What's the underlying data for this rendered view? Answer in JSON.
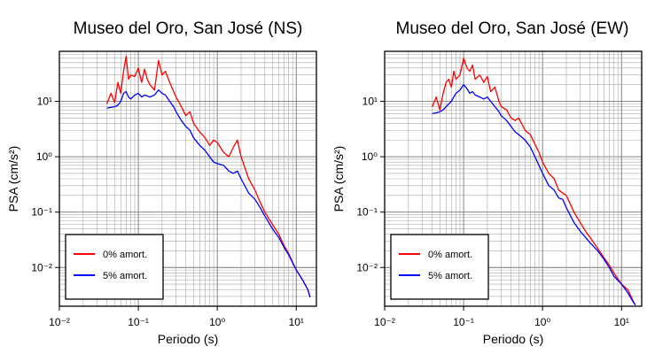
{
  "chart_data": [
    {
      "type": "line",
      "title": "Museo del Oro, San José (NS)",
      "xlabel": "Periodo (s)",
      "ylabel": "PSA (cm/s²)",
      "xscale": "log",
      "yscale": "log",
      "xlim": [
        0.01,
        18
      ],
      "ylim": [
        0.002,
        80
      ],
      "xtick_labels": [
        "10⁻²",
        "10⁻¹",
        "10⁰",
        "10¹"
      ],
      "ytick_labels": [
        "10⁻²",
        "10⁻¹",
        "10⁰",
        "10¹"
      ],
      "grid": true,
      "legend_position": "bottom-left",
      "series": [
        {
          "name": "0% amort.",
          "color": "#ff0000",
          "x": [
            0.04,
            0.045,
            0.05,
            0.055,
            0.06,
            0.065,
            0.07,
            0.075,
            0.08,
            0.09,
            0.1,
            0.11,
            0.12,
            0.13,
            0.14,
            0.16,
            0.18,
            0.2,
            0.22,
            0.25,
            0.28,
            0.3,
            0.35,
            0.4,
            0.45,
            0.5,
            0.6,
            0.7,
            0.8,
            0.9,
            1.0,
            1.2,
            1.4,
            1.6,
            1.8,
            2.0,
            2.5,
            3.0,
            3.5,
            4.0,
            5.0,
            6.0,
            7.0,
            8.0,
            10.0,
            12.0,
            14.0,
            15.0
          ],
          "y": [
            9.0,
            14.0,
            9.5,
            22.0,
            14.0,
            35.0,
            65.0,
            25.0,
            30.0,
            28.0,
            40.0,
            22.0,
            38.0,
            25.0,
            20.0,
            16.0,
            55.0,
            30.0,
            35.0,
            22.0,
            15.0,
            12.0,
            8.0,
            5.5,
            6.5,
            4.0,
            2.8,
            2.2,
            1.6,
            2.0,
            1.8,
            1.2,
            1.0,
            1.5,
            2.0,
            1.0,
            0.4,
            0.25,
            0.15,
            0.1,
            0.06,
            0.04,
            0.025,
            0.018,
            0.009,
            0.006,
            0.004,
            0.0029
          ]
        },
        {
          "name": "5% amort.",
          "color": "#0000ff",
          "x": [
            0.04,
            0.045,
            0.05,
            0.055,
            0.06,
            0.065,
            0.07,
            0.075,
            0.08,
            0.09,
            0.1,
            0.11,
            0.12,
            0.13,
            0.14,
            0.16,
            0.18,
            0.2,
            0.22,
            0.25,
            0.28,
            0.3,
            0.35,
            0.4,
            0.45,
            0.5,
            0.6,
            0.7,
            0.8,
            0.9,
            1.0,
            1.2,
            1.4,
            1.6,
            1.8,
            2.0,
            2.5,
            3.0,
            3.5,
            4.0,
            5.0,
            6.0,
            7.0,
            8.0,
            10.0,
            12.0,
            14.0,
            15.0
          ],
          "y": [
            7.5,
            7.8,
            8.0,
            8.5,
            10.0,
            14.0,
            15.0,
            12.0,
            11.0,
            13.0,
            14.0,
            12.0,
            13.0,
            12.5,
            12.0,
            13.0,
            16.0,
            14.0,
            13.0,
            10.0,
            8.0,
            6.5,
            4.5,
            3.5,
            3.0,
            2.2,
            1.6,
            1.3,
            1.0,
            0.8,
            0.75,
            0.7,
            0.55,
            0.5,
            0.55,
            0.4,
            0.22,
            0.17,
            0.12,
            0.085,
            0.05,
            0.035,
            0.023,
            0.017,
            0.009,
            0.006,
            0.004,
            0.0029
          ]
        }
      ]
    },
    {
      "type": "line",
      "title": "Museo del Oro, San José (EW)",
      "xlabel": "Periodo (s)",
      "ylabel": "PSA (cm/s²)",
      "xscale": "log",
      "yscale": "log",
      "xlim": [
        0.01,
        18
      ],
      "ylim": [
        0.002,
        80
      ],
      "xtick_labels": [
        "10⁻²",
        "10⁻¹",
        "10⁰",
        "10¹"
      ],
      "ytick_labels": [
        "10⁻²",
        "10⁻¹",
        "10⁰",
        "10¹"
      ],
      "grid": true,
      "legend_position": "bottom-left",
      "series": [
        {
          "name": "0% amort.",
          "color": "#ff0000",
          "x": [
            0.04,
            0.045,
            0.05,
            0.055,
            0.06,
            0.065,
            0.07,
            0.075,
            0.08,
            0.09,
            0.1,
            0.11,
            0.12,
            0.13,
            0.14,
            0.16,
            0.18,
            0.2,
            0.22,
            0.25,
            0.28,
            0.3,
            0.35,
            0.4,
            0.45,
            0.5,
            0.6,
            0.7,
            0.8,
            0.9,
            1.0,
            1.2,
            1.4,
            1.6,
            1.8,
            2.0,
            2.5,
            3.0,
            3.5,
            4.0,
            5.0,
            6.0,
            7.0,
            8.0,
            10.0,
            12.0,
            14.0,
            15.0
          ],
          "y": [
            8.0,
            12.0,
            7.0,
            14.0,
            22.0,
            25.0,
            18.0,
            35.0,
            25.0,
            30.0,
            60.0,
            40.0,
            35.0,
            45.0,
            25.0,
            30.0,
            22.0,
            28.0,
            15.0,
            18.0,
            10.0,
            8.0,
            7.0,
            5.0,
            4.5,
            5.0,
            3.0,
            2.5,
            1.7,
            1.2,
            0.8,
            0.5,
            0.4,
            0.25,
            0.22,
            0.2,
            0.1,
            0.065,
            0.045,
            0.035,
            0.022,
            0.015,
            0.011,
            0.008,
            0.005,
            0.004,
            0.0025,
            0.0021
          ]
        },
        {
          "name": "5% amort.",
          "color": "#0000ff",
          "x": [
            0.04,
            0.045,
            0.05,
            0.055,
            0.06,
            0.065,
            0.07,
            0.075,
            0.08,
            0.09,
            0.1,
            0.11,
            0.12,
            0.13,
            0.14,
            0.16,
            0.18,
            0.2,
            0.22,
            0.25,
            0.28,
            0.3,
            0.35,
            0.4,
            0.45,
            0.5,
            0.6,
            0.7,
            0.8,
            0.9,
            1.0,
            1.2,
            1.4,
            1.6,
            1.8,
            2.0,
            2.5,
            3.0,
            3.5,
            4.0,
            5.0,
            6.0,
            7.0,
            8.0,
            10.0,
            12.0,
            14.0,
            15.0
          ],
          "y": [
            6.0,
            6.2,
            6.5,
            7.0,
            8.0,
            9.0,
            10.0,
            12.0,
            14.0,
            16.0,
            20.0,
            17.0,
            14.0,
            15.0,
            13.0,
            12.0,
            11.0,
            12.0,
            10.0,
            8.0,
            6.5,
            5.5,
            4.5,
            3.5,
            2.8,
            2.5,
            2.0,
            1.5,
            1.0,
            0.7,
            0.5,
            0.3,
            0.25,
            0.18,
            0.17,
            0.12,
            0.065,
            0.045,
            0.035,
            0.028,
            0.02,
            0.014,
            0.01,
            0.007,
            0.005,
            0.0035,
            0.0024,
            0.0021
          ]
        }
      ]
    }
  ]
}
